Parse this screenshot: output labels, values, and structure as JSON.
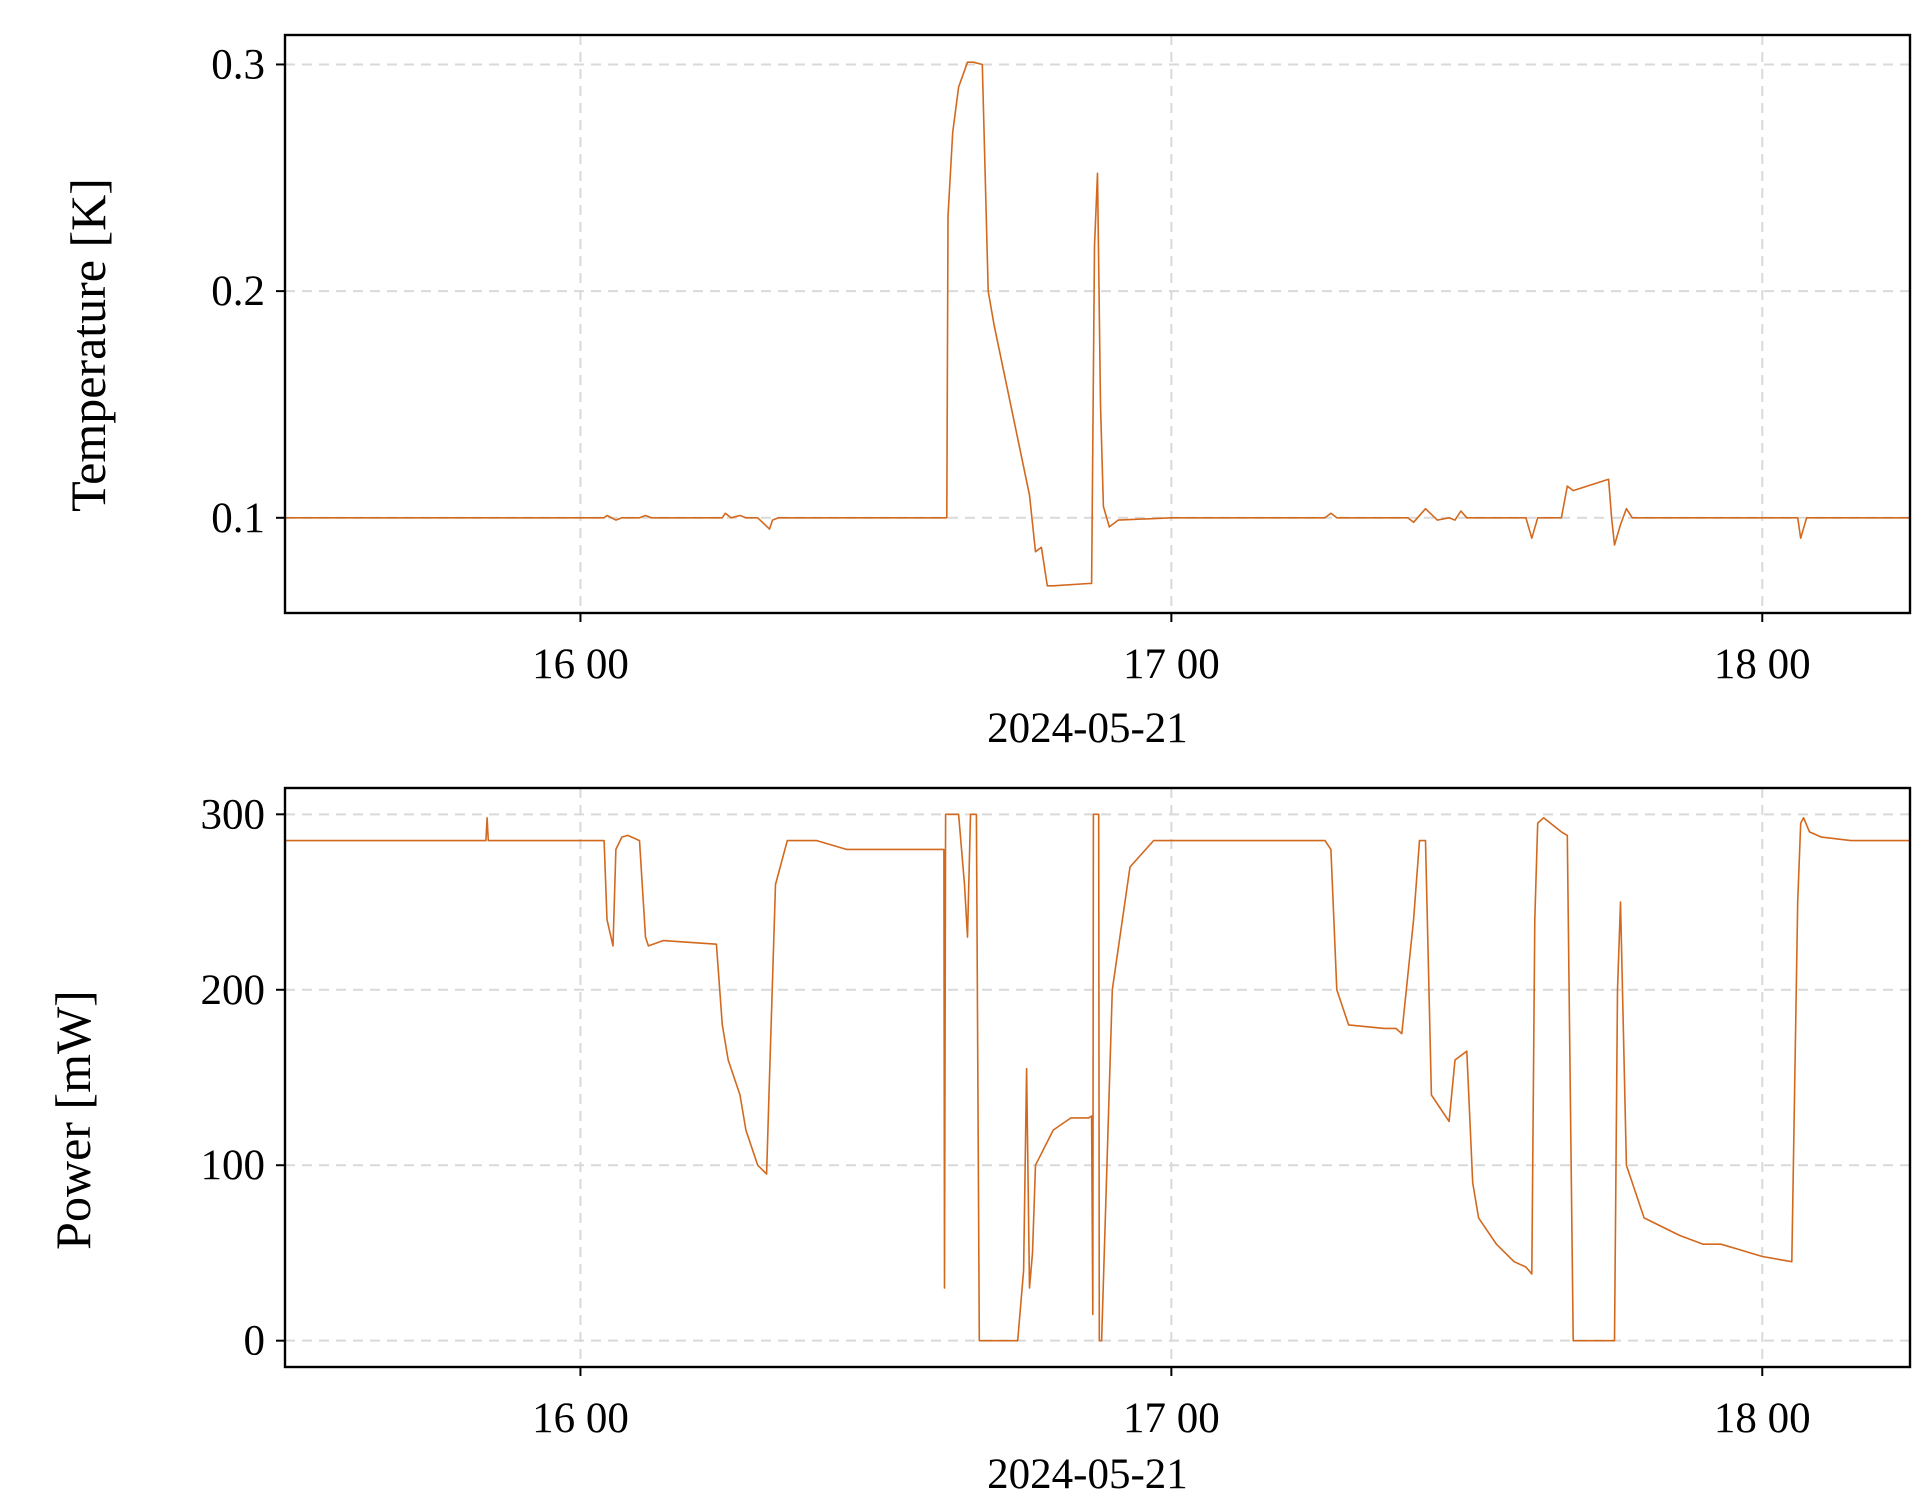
{
  "colors": {
    "series": "#d2691e",
    "grid": "#d9d9d9"
  },
  "chart_data": [
    {
      "type": "line",
      "ylabel": "Temperature [K]",
      "xlabel": "2024-05-21",
      "x_ticks": [
        "16 00",
        "17 00",
        "18 00"
      ],
      "x_tick_values_hours": [
        16,
        17,
        18
      ],
      "xlim_hours": [
        15.5,
        18.25
      ],
      "y_ticks": [
        "0.1",
        "0.2",
        "0.3"
      ],
      "y_tick_values": [
        0.1,
        0.2,
        0.3
      ],
      "ylim": [
        0.058,
        0.313
      ],
      "grid": true,
      "series": [
        {
          "x_hours": [
            15.5,
            16.04,
            16.045,
            16.06,
            16.07,
            16.1,
            16.11,
            16.12,
            16.24,
            16.245,
            16.255,
            16.27,
            16.28,
            16.3,
            16.32,
            16.325,
            16.335,
            16.62,
            16.622,
            16.63,
            16.64,
            16.655,
            16.665,
            16.68,
            16.69,
            16.7,
            16.76,
            16.77,
            16.78,
            16.79,
            16.8,
            16.86,
            16.865,
            16.87,
            16.875,
            16.88,
            16.885,
            16.895,
            16.91,
            17.0,
            17.26,
            17.27,
            17.28,
            17.4,
            17.41,
            17.43,
            17.45,
            17.47,
            17.48,
            17.49,
            17.5,
            17.6,
            17.61,
            17.62,
            17.63,
            17.66,
            17.67,
            17.68,
            17.74,
            17.745,
            17.75,
            17.76,
            17.77,
            17.78,
            17.9,
            18.0,
            18.05,
            18.06,
            18.065,
            18.075,
            18.25
          ],
          "y": [
            0.1,
            0.1,
            0.101,
            0.099,
            0.1,
            0.1,
            0.101,
            0.1,
            0.1,
            0.102,
            0.1,
            0.101,
            0.1,
            0.1,
            0.095,
            0.099,
            0.1,
            0.1,
            0.233,
            0.27,
            0.29,
            0.301,
            0.301,
            0.3,
            0.2,
            0.185,
            0.11,
            0.085,
            0.087,
            0.07,
            0.07,
            0.071,
            0.071,
            0.22,
            0.252,
            0.15,
            0.105,
            0.096,
            0.099,
            0.1,
            0.1,
            0.102,
            0.1,
            0.1,
            0.098,
            0.104,
            0.099,
            0.1,
            0.099,
            0.103,
            0.1,
            0.1,
            0.091,
            0.1,
            0.1,
            0.1,
            0.114,
            0.112,
            0.117,
            0.1,
            0.088,
            0.097,
            0.104,
            0.1,
            0.1,
            0.1,
            0.1,
            0.1,
            0.091,
            0.1,
            0.1
          ]
        }
      ]
    },
    {
      "type": "line",
      "ylabel": "Power [mW]",
      "xlabel": "2024-05-21",
      "x_ticks": [
        "16 00",
        "17 00",
        "18 00"
      ],
      "x_tick_values_hours": [
        16,
        17,
        18
      ],
      "xlim_hours": [
        15.5,
        18.25
      ],
      "y_ticks": [
        "0",
        "100",
        "200",
        "300"
      ],
      "y_tick_values": [
        0,
        100,
        200,
        300
      ],
      "ylim": [
        -15,
        315
      ],
      "grid": true,
      "series": [
        {
          "x_hours": [
            15.5,
            15.84,
            15.842,
            15.844,
            16.04,
            16.045,
            16.055,
            16.06,
            16.07,
            16.08,
            16.1,
            16.11,
            16.115,
            16.14,
            16.23,
            16.24,
            16.25,
            16.27,
            16.28,
            16.3,
            16.315,
            16.32,
            16.33,
            16.35,
            16.4,
            16.45,
            16.6,
            16.615,
            16.616,
            16.618,
            16.64,
            16.65,
            16.655,
            16.66,
            16.67,
            16.675,
            16.68,
            16.69,
            16.74,
            16.75,
            16.755,
            16.76,
            16.765,
            16.77,
            16.8,
            16.83,
            16.86,
            16.865,
            16.867,
            16.868,
            16.877,
            16.878,
            16.882,
            16.9,
            16.93,
            16.97,
            17.0,
            17.26,
            17.27,
            17.28,
            17.3,
            17.36,
            17.38,
            17.39,
            17.41,
            17.42,
            17.43,
            17.44,
            17.47,
            17.48,
            17.5,
            17.51,
            17.52,
            17.55,
            17.58,
            17.6,
            17.61,
            17.615,
            17.62,
            17.63,
            17.66,
            17.67,
            17.68,
            17.72,
            17.74,
            17.75,
            17.755,
            17.76,
            17.77,
            17.8,
            17.86,
            17.9,
            17.93,
            17.96,
            17.98,
            18.0,
            18.05,
            18.06,
            18.065,
            18.07,
            18.08,
            18.1,
            18.15,
            18.25
          ],
          "y": [
            285,
            285,
            298,
            285,
            285,
            240,
            225,
            280,
            287,
            288,
            285,
            230,
            225,
            228,
            226,
            180,
            160,
            140,
            120,
            100,
            95,
            150,
            260,
            285,
            285,
            280,
            280,
            280,
            30,
            300,
            300,
            260,
            230,
            300,
            300,
            0,
            0,
            0,
            0,
            40,
            155,
            30,
            50,
            100,
            120,
            127,
            127,
            128,
            15,
            300,
            300,
            0,
            0,
            200,
            270,
            285,
            285,
            285,
            280,
            200,
            180,
            178,
            178,
            175,
            240,
            285,
            285,
            140,
            125,
            160,
            165,
            90,
            70,
            55,
            45,
            42,
            38,
            240,
            295,
            298,
            290,
            288,
            0,
            0,
            0,
            0,
            200,
            250,
            100,
            70,
            60,
            55,
            55,
            52,
            50,
            48,
            45,
            250,
            295,
            298,
            290,
            287,
            285,
            285
          ]
        }
      ]
    }
  ]
}
